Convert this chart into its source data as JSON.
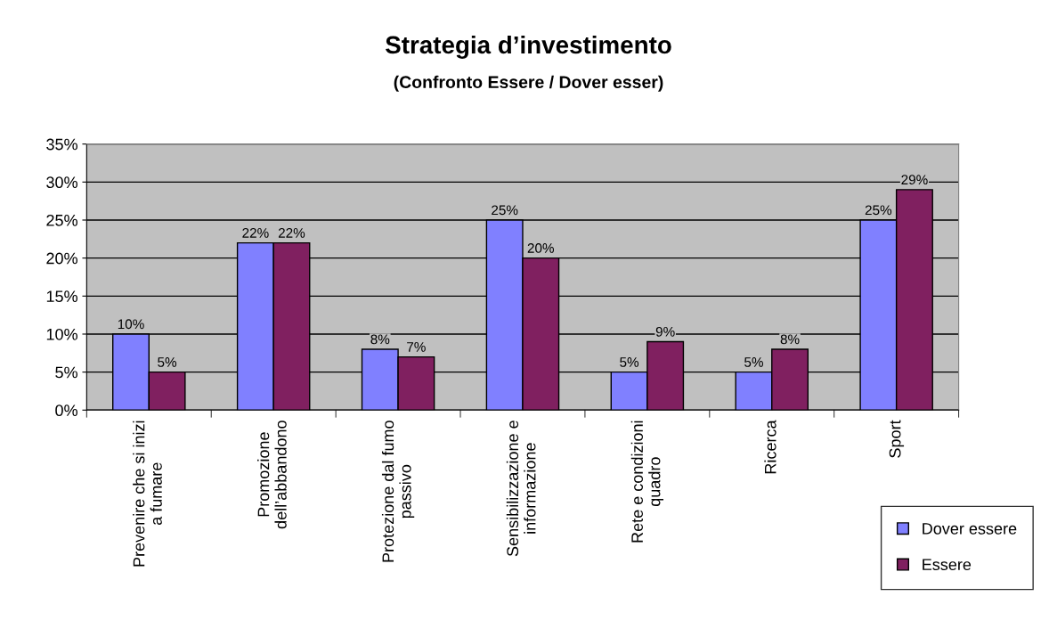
{
  "chart_data": {
    "type": "bar",
    "title": "Strategia d’investimento",
    "subtitle": "(Confronto Essere / Dover esser)",
    "categories": [
      "Prevenire che si inizi\na fumare",
      "Promozione\ndell’abbandono",
      "Protezione dal fumo\npassivo",
      "Sensibilizzazione e\ninformazione",
      "Rete e condizioni\nquadro",
      "Ricerca",
      "Sport"
    ],
    "series": [
      {
        "name": "Dover essere",
        "color": "#8080ff",
        "values": [
          10,
          22,
          8,
          25,
          5,
          5,
          25
        ],
        "value_labels": [
          "10%",
          "22%",
          "8%",
          "25%",
          "5%",
          "5%",
          "25%"
        ]
      },
      {
        "name": "Essere",
        "color": "#802060",
        "values": [
          5,
          22,
          7,
          20,
          9,
          8,
          29
        ],
        "value_labels": [
          "5%",
          "22%",
          "7%",
          "20%",
          "9%",
          "8%",
          "29%"
        ]
      }
    ],
    "ylim": [
      0,
      35
    ],
    "yticks": [
      {
        "value": 0,
        "label": "0%"
      },
      {
        "value": 5,
        "label": "5%"
      },
      {
        "value": 10,
        "label": "10%"
      },
      {
        "value": 15,
        "label": "15%"
      },
      {
        "value": 20,
        "label": "20%"
      },
      {
        "value": 25,
        "label": "25%"
      },
      {
        "value": 30,
        "label": "30%"
      },
      {
        "value": 35,
        "label": "35%"
      }
    ],
    "grid": "y",
    "legend": "bottom right"
  }
}
